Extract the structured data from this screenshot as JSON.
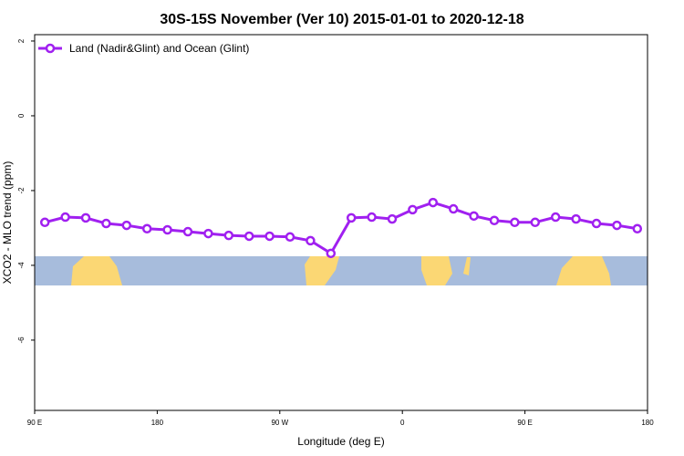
{
  "chart_data": {
    "type": "line",
    "title": "30S-15S November (Ver 10)   2015-01-01 to 2020-12-18",
    "x_label": "Longitude (deg E)",
    "y_label": "XCO2 - MLO trend (ppm)",
    "x": [
      97.5,
      112.5,
      127.5,
      142.5,
      157.5,
      172.5,
      187.5,
      202.5,
      217.5,
      232.5,
      247.5,
      262.5,
      277.5,
      292.5,
      307.5,
      322.5,
      337.5,
      352.5,
      367.5,
      382.5,
      397.5,
      412.5,
      427.5,
      442.5,
      457.5,
      472.5,
      487.5,
      502.5,
      517.5,
      532.5
    ],
    "series": [
      {
        "name": "Land (Nadir&Glint) and Ocean (Glint)",
        "color": "#a020f0",
        "values": [
          -2.85,
          -2.71,
          -2.73,
          -2.88,
          -2.93,
          -3.02,
          -3.05,
          -3.1,
          -3.15,
          -3.2,
          -3.22,
          -3.22,
          -3.24,
          -3.34,
          -3.68,
          -2.73,
          -2.71,
          -2.76,
          -2.51,
          -2.32,
          -2.49,
          -2.68,
          -2.8,
          -2.85,
          -2.85,
          -2.71,
          -2.76,
          -2.88,
          -2.93,
          -3.02
        ]
      }
    ],
    "xlim": [
      90,
      540
    ],
    "xticks": [
      {
        "value": 90,
        "label": "90 E"
      },
      {
        "value": 180,
        "label": "180"
      },
      {
        "value": 270,
        "label": "90 W"
      },
      {
        "value": 360,
        "label": "0"
      },
      {
        "value": 450,
        "label": "90 E"
      },
      {
        "value": 540,
        "label": "180"
      }
    ],
    "ylim": [
      -7.88,
      2.17
    ],
    "yticks": [
      2,
      0,
      -2,
      -4,
      -6
    ],
    "legend": "top-left"
  }
}
